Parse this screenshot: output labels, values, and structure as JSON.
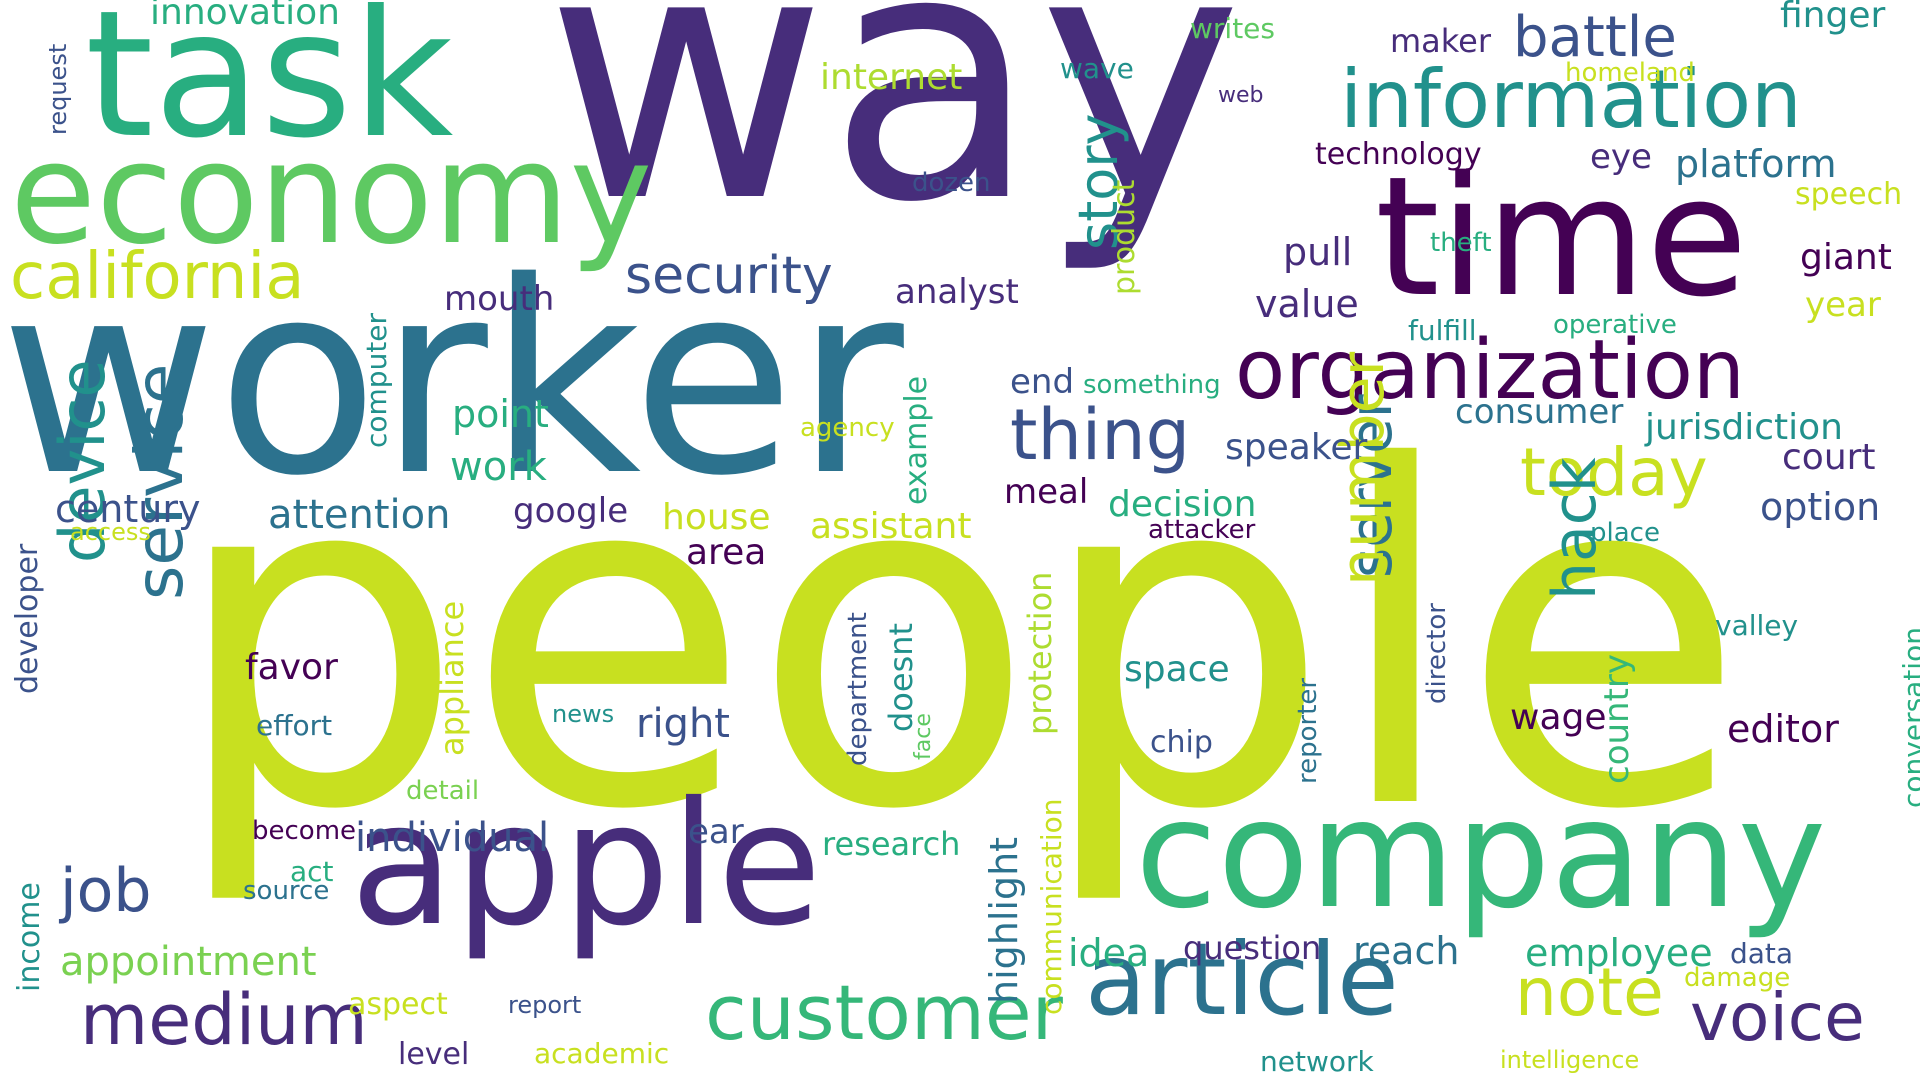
{
  "colors": {
    "c1": "#472d7b",
    "c2": "#3b528b",
    "c3": "#2c728e",
    "c4": "#21918c",
    "c5": "#28ae80",
    "c6": "#5ec962",
    "c7": "#addc30",
    "c8": "#c8e020",
    "c9": "#440154",
    "c10": "#35b779",
    "c11": "#7ad151"
  },
  "words": [
    {
      "text": "way",
      "color": "c1"
    },
    {
      "text": "people",
      "color": "c8"
    },
    {
      "text": "worker",
      "color": "c3"
    },
    {
      "text": "task",
      "color": "c5"
    },
    {
      "text": "time",
      "color": "c9"
    },
    {
      "text": "economy",
      "color": "c6"
    },
    {
      "text": "company",
      "color": "c10"
    },
    {
      "text": "apple",
      "color": "c1"
    },
    {
      "text": "organization",
      "color": "c9"
    },
    {
      "text": "information",
      "color": "c4"
    },
    {
      "text": "article",
      "color": "c3"
    },
    {
      "text": "california",
      "color": "c8"
    },
    {
      "text": "customer",
      "color": "c10"
    },
    {
      "text": "medium",
      "color": "c1"
    },
    {
      "text": "thing",
      "color": "c2"
    },
    {
      "text": "battle",
      "color": "c2"
    },
    {
      "text": "security",
      "color": "c2"
    },
    {
      "text": "today",
      "color": "c8"
    },
    {
      "text": "note",
      "color": "c8"
    },
    {
      "text": "voice",
      "color": "c1"
    },
    {
      "text": "story",
      "color": "c4"
    },
    {
      "text": "service",
      "color": "c3"
    },
    {
      "text": "device",
      "color": "c4"
    },
    {
      "text": "server",
      "color": "c3"
    },
    {
      "text": "number",
      "color": "c8"
    },
    {
      "text": "hack",
      "color": "c4"
    },
    {
      "text": "job",
      "color": "c2"
    },
    {
      "text": "innovation",
      "color": "c5"
    },
    {
      "text": "internet",
      "color": "c7"
    },
    {
      "text": "maker",
      "color": "c1"
    },
    {
      "text": "finger",
      "color": "c4"
    },
    {
      "text": "writes",
      "color": "c6"
    },
    {
      "text": "wave",
      "color": "c4"
    },
    {
      "text": "homeland",
      "color": "c8"
    },
    {
      "text": "web",
      "color": "c1"
    },
    {
      "text": "request",
      "color": "c2"
    },
    {
      "text": "technology",
      "color": "c9"
    },
    {
      "text": "eye",
      "color": "c1"
    },
    {
      "text": "platform",
      "color": "c3"
    },
    {
      "text": "speech",
      "color": "c8"
    },
    {
      "text": "dozen",
      "color": "c2"
    },
    {
      "text": "product",
      "color": "c7"
    },
    {
      "text": "theft",
      "color": "c5"
    },
    {
      "text": "giant",
      "color": "c9"
    },
    {
      "text": "pull",
      "color": "c1"
    },
    {
      "text": "year",
      "color": "c8"
    },
    {
      "text": "analyst",
      "color": "c1"
    },
    {
      "text": "value",
      "color": "c1"
    },
    {
      "text": "mouth",
      "color": "c1"
    },
    {
      "text": "fulfill",
      "color": "c4"
    },
    {
      "text": "operative",
      "color": "c5"
    },
    {
      "text": "end",
      "color": "c2"
    },
    {
      "text": "something",
      "color": "c5"
    },
    {
      "text": "computer",
      "color": "c4"
    },
    {
      "text": "consumer",
      "color": "c3"
    },
    {
      "text": "jurisdiction",
      "color": "c4"
    },
    {
      "text": "point",
      "color": "c5"
    },
    {
      "text": "agency",
      "color": "c8"
    },
    {
      "text": "example",
      "color": "c5"
    },
    {
      "text": "speaker",
      "color": "c2"
    },
    {
      "text": "court",
      "color": "c1"
    },
    {
      "text": "work",
      "color": "c5"
    },
    {
      "text": "century",
      "color": "c2"
    },
    {
      "text": "attention",
      "color": "c3"
    },
    {
      "text": "google",
      "color": "c1"
    },
    {
      "text": "meal",
      "color": "c9"
    },
    {
      "text": "decision",
      "color": "c5"
    },
    {
      "text": "option",
      "color": "c2"
    },
    {
      "text": "access",
      "color": "c8"
    },
    {
      "text": "house",
      "color": "c8"
    },
    {
      "text": "assistant",
      "color": "c8"
    },
    {
      "text": "attacker",
      "color": "c9"
    },
    {
      "text": "place",
      "color": "c4"
    },
    {
      "text": "area",
      "color": "c9"
    },
    {
      "text": "developer",
      "color": "c2"
    },
    {
      "text": "protection",
      "color": "c7"
    },
    {
      "text": "valley",
      "color": "c4"
    },
    {
      "text": "conversation",
      "color": "c5"
    },
    {
      "text": "appliance",
      "color": "c8"
    },
    {
      "text": "favor",
      "color": "c9"
    },
    {
      "text": "space",
      "color": "c4"
    },
    {
      "text": "director",
      "color": "c2"
    },
    {
      "text": "department",
      "color": "c2"
    },
    {
      "text": "doesnt",
      "color": "c4"
    },
    {
      "text": "country",
      "color": "c10"
    },
    {
      "text": "reporter",
      "color": "c3"
    },
    {
      "text": "right",
      "color": "c2"
    },
    {
      "text": "wage",
      "color": "c9"
    },
    {
      "text": "editor",
      "color": "c9"
    },
    {
      "text": "effort",
      "color": "c3"
    },
    {
      "text": "news",
      "color": "c4"
    },
    {
      "text": "face",
      "color": "c6"
    },
    {
      "text": "chip",
      "color": "c2"
    },
    {
      "text": "highlight",
      "color": "c3"
    },
    {
      "text": "detail",
      "color": "c11"
    },
    {
      "text": "communication",
      "color": "c8"
    },
    {
      "text": "become",
      "color": "c9"
    },
    {
      "text": "individual",
      "color": "c2"
    },
    {
      "text": "ear",
      "color": "c2"
    },
    {
      "text": "research",
      "color": "c5"
    },
    {
      "text": "income",
      "color": "c4"
    },
    {
      "text": "act",
      "color": "c5"
    },
    {
      "text": "source",
      "color": "c3"
    },
    {
      "text": "appointment",
      "color": "c11"
    },
    {
      "text": "idea",
      "color": "c5"
    },
    {
      "text": "question",
      "color": "c1"
    },
    {
      "text": "reach",
      "color": "c3"
    },
    {
      "text": "employee",
      "color": "c5"
    },
    {
      "text": "data",
      "color": "c2"
    },
    {
      "text": "damage",
      "color": "c8"
    },
    {
      "text": "aspect",
      "color": "c8"
    },
    {
      "text": "report",
      "color": "c2"
    },
    {
      "text": "level",
      "color": "c1"
    },
    {
      "text": "academic",
      "color": "c8"
    },
    {
      "text": "network",
      "color": "c4"
    },
    {
      "text": "intelligence",
      "color": "c8"
    }
  ]
}
